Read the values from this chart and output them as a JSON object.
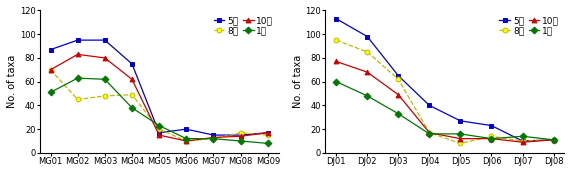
{
  "left": {
    "x_labels": [
      "MG01",
      "MG02",
      "MG03",
      "MG04",
      "MG05",
      "MG06",
      "MG07",
      "MG08",
      "MG09"
    ],
    "series": {
      "5월": [
        87,
        95,
        95,
        75,
        17,
        20,
        15,
        15,
        17
      ],
      "8월": [
        70,
        45,
        48,
        49,
        20,
        10,
        12,
        17,
        15
      ],
      "10월": [
        70,
        83,
        80,
        62,
        15,
        10,
        13,
        14,
        17
      ],
      "1월": [
        51,
        63,
        62,
        38,
        23,
        12,
        12,
        10,
        8
      ]
    }
  },
  "right": {
    "x_labels": [
      "DJ01",
      "DJ02",
      "DJ03",
      "DJ04",
      "DJ05",
      "DJ06",
      "DJ07",
      "DJ08"
    ],
    "series": {
      "5월": [
        113,
        98,
        65,
        40,
        27,
        23,
        10,
        11
      ],
      "8월": [
        95,
        85,
        62,
        17,
        8,
        14,
        10,
        11
      ],
      "10월": [
        77,
        68,
        49,
        17,
        12,
        12,
        9,
        11
      ],
      "1월": [
        60,
        48,
        33,
        16,
        16,
        12,
        14,
        11
      ]
    }
  },
  "series_styles": {
    "5월": {
      "color": "#0000CC",
      "marker": "s",
      "linestyle": "-",
      "mfc": "#0000CC"
    },
    "8월": {
      "color": "#BBBB00",
      "marker": "o",
      "linestyle": "--",
      "mfc": "#FFFF00"
    },
    "10월": {
      "color": "#CC0000",
      "marker": "^",
      "linestyle": "-",
      "mfc": "#CC0000"
    },
    "1월": {
      "color": "#007700",
      "marker": "D",
      "linestyle": "-",
      "mfc": "#007700"
    }
  },
  "legend_order": [
    "5월",
    "8월",
    "10월",
    "1월"
  ],
  "ylim": [
    0,
    120
  ],
  "yticks": [
    0,
    20,
    40,
    60,
    80,
    100,
    120
  ],
  "ylabel": "No. of taxa",
  "tick_fontsize": 6.0,
  "label_fontsize": 7.0,
  "legend_fontsize": 6.5,
  "markersize": 3.5,
  "linewidth": 0.9
}
